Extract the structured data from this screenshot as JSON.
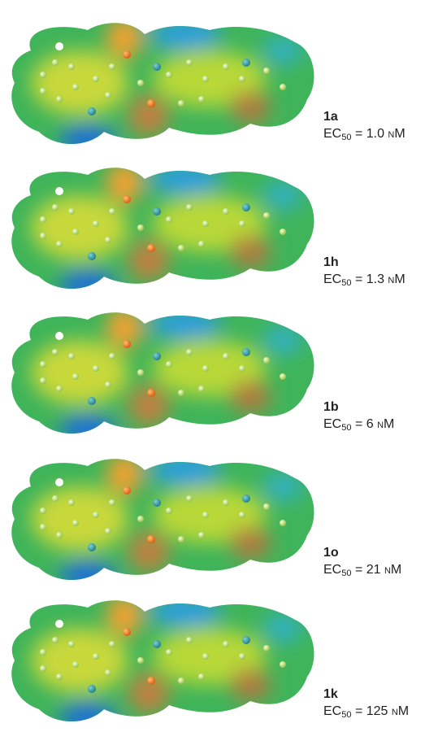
{
  "entries": [
    {
      "label": "1a",
      "ec_prefix": "EC",
      "ec_sub": "50",
      "ec_value": "= 1.0 nM"
    },
    {
      "label": "1h",
      "ec_prefix": "EC",
      "ec_sub": "50",
      "ec_value": "= 1.3 nM"
    },
    {
      "label": "1b",
      "ec_prefix": "EC",
      "ec_sub": "50",
      "ec_value": "= 6 nM"
    },
    {
      "label": "1o",
      "ec_prefix": "EC",
      "ec_sub": "50",
      "ec_value": "= 21 nM"
    },
    {
      "label": "1k",
      "ec_prefix": "EC",
      "ec_sub": "50",
      "ec_value": "= 125 nM"
    }
  ]
}
